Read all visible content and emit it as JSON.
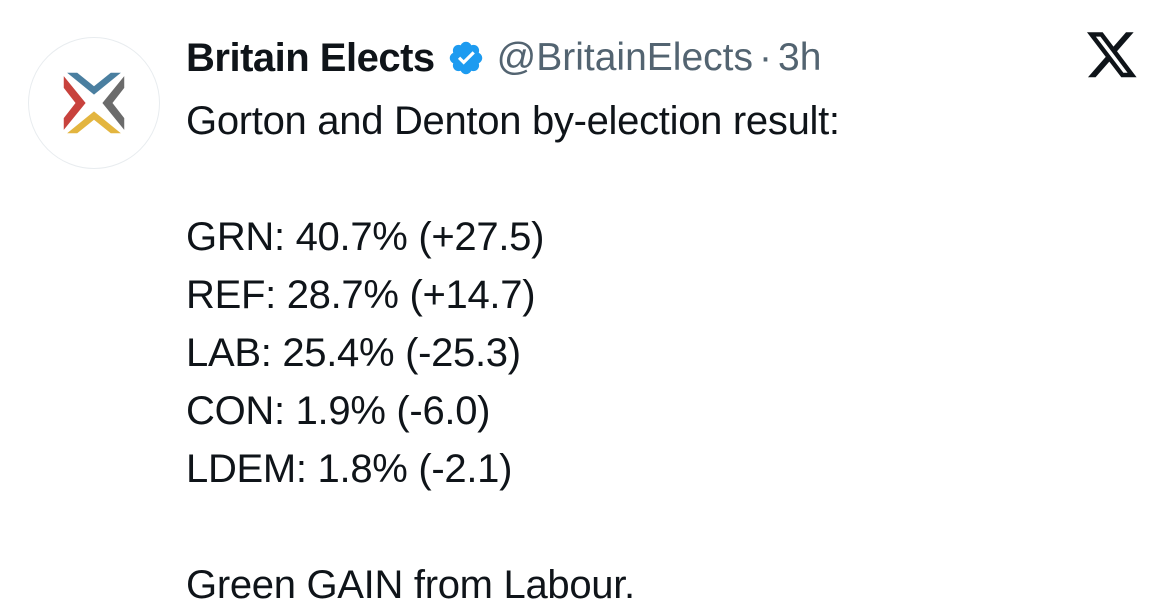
{
  "tweet": {
    "author": {
      "display_name": "Britain Elects",
      "handle": "@BritainElects",
      "verified": true,
      "avatar_icon": "britain-elects-logo",
      "logo_colors": [
        "#4a7fa0",
        "#c8423d",
        "#6b6b6b",
        "#e3b53f"
      ]
    },
    "separator": "·",
    "timestamp": "3h",
    "platform_icon": "x-logo-icon",
    "verified_color": "#1d9bf0",
    "body": {
      "headline": "Gorton and Denton by-election result:",
      "results": [
        "GRN: 40.7% (+27.5)",
        "REF: 28.7% (+14.7)",
        "LAB: 25.4% (-25.3)",
        "CON: 1.9% (-6.0)",
        "LDEM: 1.8% (-2.1)"
      ],
      "conclusion": "Green GAIN from Labour."
    }
  }
}
